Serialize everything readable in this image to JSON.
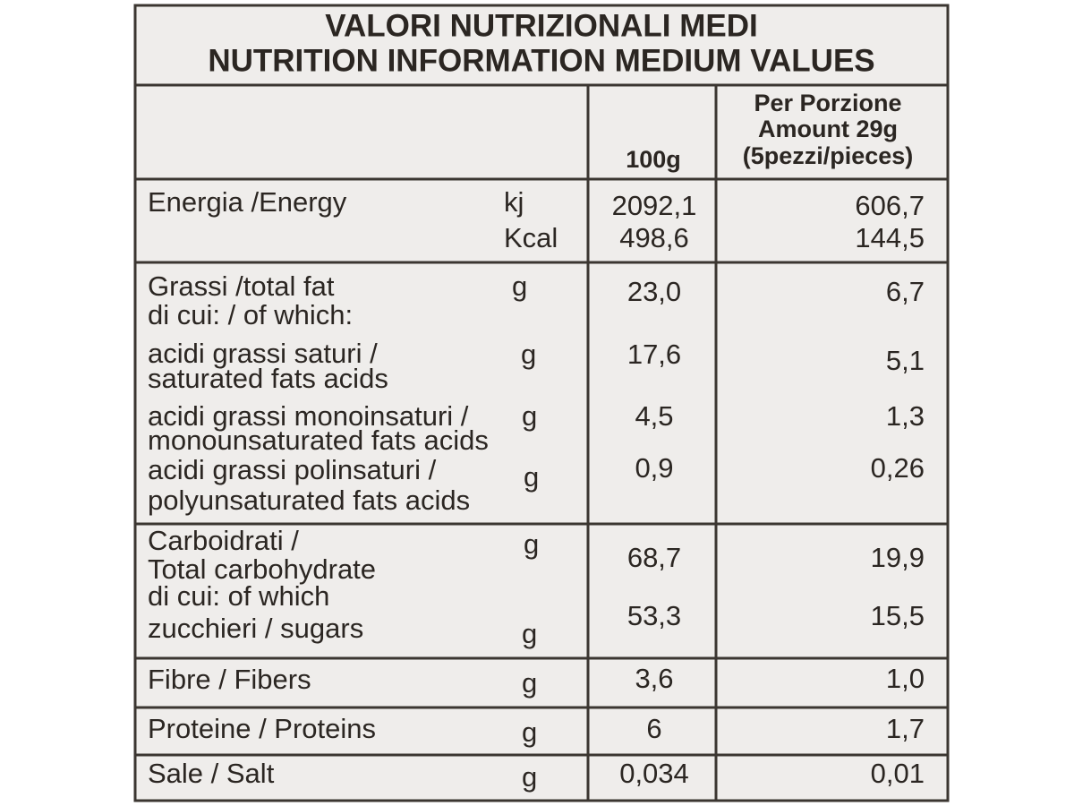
{
  "title": [
    "VALORI NUTRIZIONALI MEDI",
    "NUTRITION INFORMATION MEDIUM VALUES"
  ],
  "header": {
    "per_100g": "100g",
    "per_portion": [
      "Per Porzione",
      "Amount 29g",
      "(5pezzi/pieces)"
    ]
  },
  "rows": [
    {
      "label": [
        "Energia /Energy"
      ],
      "unit": "kj",
      "per_100g": "2092,1",
      "per_portion": "606,7"
    },
    {
      "unit": "Kcal",
      "per_100g": "498,6",
      "per_portion": "144,5"
    },
    {
      "label": [
        "Grassi  /total fat",
        "di cui: / of which:"
      ],
      "unit": "g",
      "per_100g": "23,0",
      "per_portion": "6,7"
    },
    {
      "label": [
        "acidi grassi saturi /",
        "saturated fats acids"
      ],
      "unit": "g",
      "per_100g": "17,6",
      "per_portion": "5,1"
    },
    {
      "label": [
        "acidi grassi monoinsaturi /",
        "monounsaturated fats acids"
      ],
      "unit": "g",
      "per_100g": "4,5",
      "per_portion": "1,3"
    },
    {
      "label": [
        "acidi grassi polinsaturi /",
        "polyunsaturated fats acids"
      ],
      "unit": "g",
      "per_100g": "0,9",
      "per_portion": "0,26"
    },
    {
      "label": [
        "Carboidrati /",
        "Total carbohydrate"
      ],
      "unit": "g",
      "per_100g": "68,7",
      "per_portion": "19,9"
    },
    {
      "label": [
        "di cui: of which",
        "zucchieri / sugars"
      ],
      "unit": "g",
      "per_100g": "53,3",
      "per_portion": "15,5"
    },
    {
      "label": [
        "Fibre / Fibers"
      ],
      "unit": "g",
      "per_100g": "3,6",
      "per_portion": "1,0"
    },
    {
      "label": [
        "Proteine / Proteins"
      ],
      "unit": "g",
      "per_100g": "6",
      "per_portion": "1,7"
    },
    {
      "label": [
        "Sale / Salt"
      ],
      "unit": "g",
      "per_100g": "0,034",
      "per_portion": "0,01"
    }
  ]
}
